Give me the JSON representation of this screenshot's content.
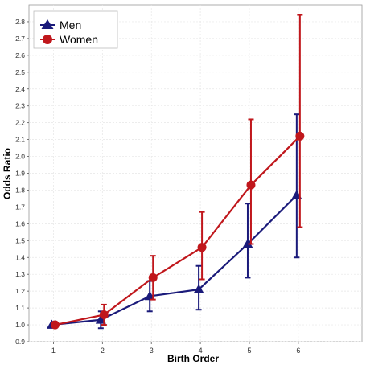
{
  "chart_data": {
    "type": "line",
    "title": "",
    "xlabel": "Birth Order",
    "ylabel": "Odds Ratio",
    "categories": [
      "1",
      "2",
      "3",
      "4",
      "5",
      "6"
    ],
    "x": [
      1,
      2,
      3,
      4,
      5,
      6
    ],
    "xlim": [
      0.5,
      7.3
    ],
    "ylim": [
      0.9,
      2.9
    ],
    "y_ticks": [
      "0.9",
      "1.0",
      "1.1",
      "1.2",
      "1.3",
      "1.4",
      "1.5",
      "1.6",
      "1.7",
      "1.8",
      "1.9",
      "2.0",
      "2.1",
      "2.2",
      "2.3",
      "2.4",
      "2.5",
      "2.6",
      "2.7",
      "2.8"
    ],
    "grid": true,
    "legend_position": "top-left",
    "series": [
      {
        "name": "Men",
        "color": "#1a1a7a",
        "marker": "triangle",
        "values": [
          1.0,
          1.03,
          1.17,
          1.21,
          1.48,
          1.77
        ],
        "ci_low": [
          1.0,
          0.98,
          1.08,
          1.09,
          1.28,
          1.4
        ],
        "ci_high": [
          1.0,
          1.08,
          1.26,
          1.35,
          1.72,
          2.25
        ]
      },
      {
        "name": "Women",
        "color": "#c0171c",
        "marker": "circle",
        "values": [
          1.0,
          1.06,
          1.28,
          1.46,
          1.83,
          2.12
        ],
        "ci_low": [
          1.0,
          1.0,
          1.15,
          1.27,
          1.48,
          1.58
        ],
        "ci_high": [
          1.0,
          1.12,
          1.41,
          1.67,
          2.22,
          2.84
        ]
      }
    ]
  }
}
